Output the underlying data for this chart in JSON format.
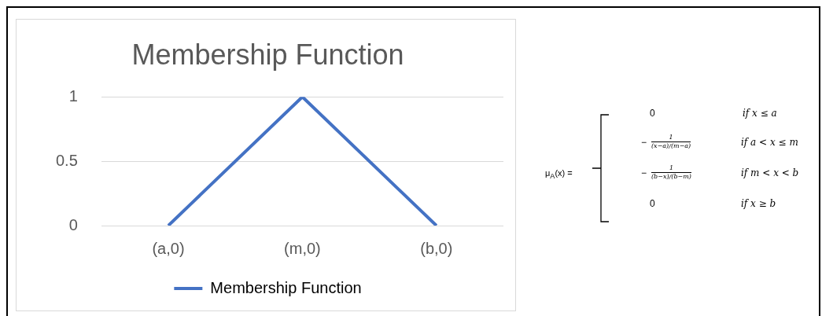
{
  "chart_data": {
    "type": "line",
    "title": "Membership Function",
    "categories": [
      "(a,0)",
      "(m,0)",
      "(b,0)"
    ],
    "series": [
      {
        "name": "Membership Function",
        "color": "#4472c4",
        "values": [
          0,
          1,
          0
        ]
      }
    ],
    "ylim": [
      0,
      1
    ],
    "yticks": [
      0,
      0.5,
      1
    ],
    "grid": "y",
    "legend": "bottom",
    "marker": "none",
    "annotations": [
      "μ$_{A}$(x) =",
      "0",
      "if x ≤ a",
      "−",
      "1",
      "(x−a)/(m−a)",
      "if a < x ≤ m",
      "−",
      "1",
      "(b−x)/(b−m)",
      "if m < x < b",
      "0",
      "if x ≥ b"
    ]
  }
}
